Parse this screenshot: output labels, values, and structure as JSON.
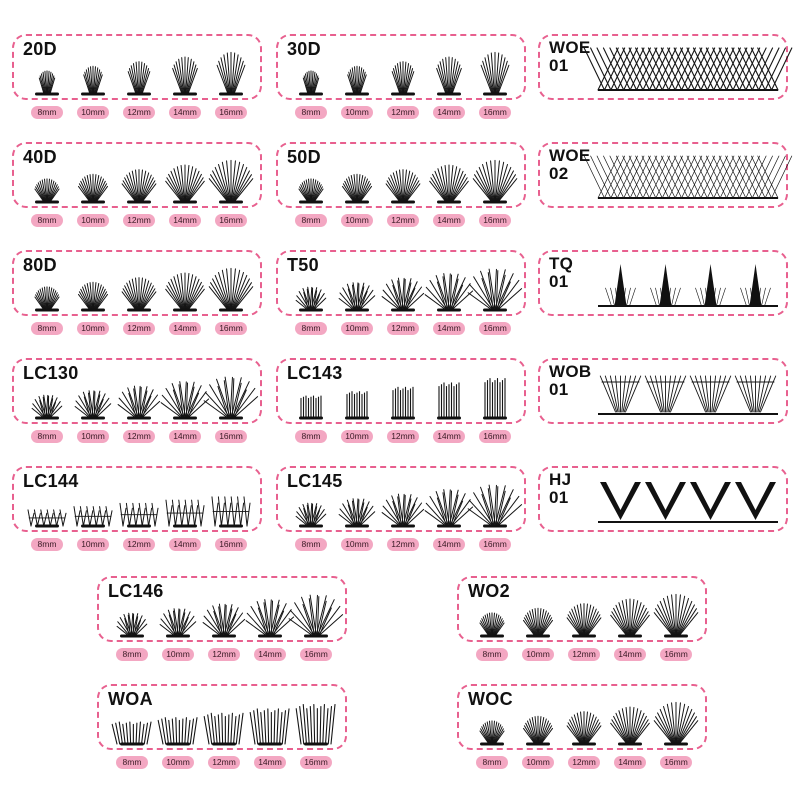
{
  "colors": {
    "border": "#e8608f",
    "tag_fill": "#f3a7c2",
    "lash": "#151515",
    "background": "#ffffff"
  },
  "size_cards": [
    {
      "id": "20d",
      "name": "20D",
      "style": "fan",
      "sizes": [
        "8mm",
        "10mm",
        "12mm",
        "14mm",
        "16mm"
      ]
    },
    {
      "id": "30d",
      "name": "30D",
      "style": "fan",
      "sizes": [
        "8mm",
        "10mm",
        "12mm",
        "14mm",
        "16mm"
      ]
    },
    {
      "id": "40d",
      "name": "40D",
      "style": "fanwide",
      "sizes": [
        "8mm",
        "10mm",
        "12mm",
        "14mm",
        "16mm"
      ]
    },
    {
      "id": "50d",
      "name": "50D",
      "style": "fanwide",
      "sizes": [
        "8mm",
        "10mm",
        "12mm",
        "14mm",
        "16mm"
      ]
    },
    {
      "id": "80d",
      "name": "80D",
      "style": "fanwide",
      "sizes": [
        "8mm",
        "10mm",
        "12mm",
        "14mm",
        "16mm"
      ]
    },
    {
      "id": "t50",
      "name": "T50",
      "style": "cross",
      "sizes": [
        "8mm",
        "10mm",
        "12mm",
        "14mm",
        "16mm"
      ]
    },
    {
      "id": "lc130",
      "name": "LC130",
      "style": "cross",
      "sizes": [
        "8mm",
        "10mm",
        "12mm",
        "14mm",
        "16mm"
      ]
    },
    {
      "id": "lc143",
      "name": "LC143",
      "style": "straight",
      "sizes": [
        "8mm",
        "10mm",
        "12mm",
        "14mm",
        "16mm"
      ]
    },
    {
      "id": "lc144",
      "name": "LC144",
      "style": "spiky",
      "sizes": [
        "8mm",
        "10mm",
        "12mm",
        "14mm",
        "16mm"
      ]
    },
    {
      "id": "lc145",
      "name": "LC145",
      "style": "cross",
      "sizes": [
        "8mm",
        "10mm",
        "12mm",
        "14mm",
        "16mm"
      ]
    },
    {
      "id": "lc146",
      "name": "LC146",
      "style": "cross",
      "sizes": [
        "8mm",
        "10mm",
        "12mm",
        "14mm",
        "16mm"
      ]
    },
    {
      "id": "wo2",
      "name": "WO2",
      "style": "fanwide",
      "sizes": [
        "8mm",
        "10mm",
        "12mm",
        "14mm",
        "16mm"
      ]
    },
    {
      "id": "woa",
      "name": "WOA",
      "style": "straight2",
      "sizes": [
        "8mm",
        "10mm",
        "12mm",
        "14mm",
        "16mm"
      ]
    },
    {
      "id": "woc",
      "name": "WOC",
      "style": "fanwide",
      "sizes": [
        "8mm",
        "10mm",
        "12mm",
        "14mm",
        "16mm"
      ]
    }
  ],
  "style_cards": [
    {
      "id": "woe01",
      "line1": "WOE",
      "line2": "01",
      "style": "zigzag"
    },
    {
      "id": "woe02",
      "line1": "WOE",
      "line2": "02",
      "style": "zigzag-light"
    },
    {
      "id": "tq01",
      "line1": "TQ",
      "line2": "01",
      "style": "spike"
    },
    {
      "id": "wob01",
      "line1": "WOB",
      "line2": "01",
      "style": "cup"
    },
    {
      "id": "hj01",
      "line1": "HJ",
      "line2": "01",
      "style": "v"
    }
  ]
}
